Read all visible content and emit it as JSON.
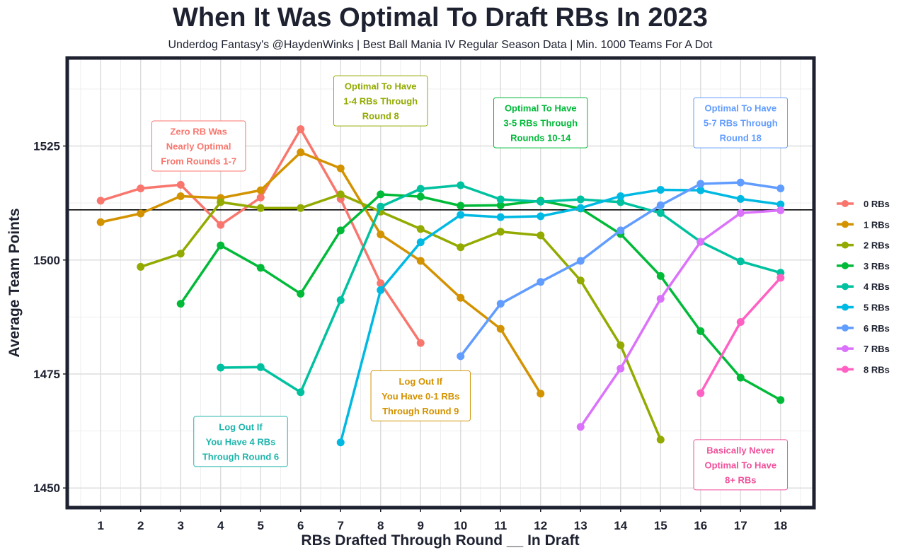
{
  "chart_data": {
    "type": "line",
    "title": "When It Was Optimal To Draft RBs In 2023",
    "subtitle": "Underdog Fantasy's @HaydenWinks | Best Ball Mania IV Regular Season Data | Min. 1000 Teams For A Dot",
    "xlabel": "RBs Drafted Through Round __ In Draft",
    "ylabel": "Average Team Points",
    "xlim": [
      0.2,
      18.8
    ],
    "ylim": [
      1446,
      1544
    ],
    "x_ticks": [
      1,
      2,
      3,
      4,
      5,
      6,
      7,
      8,
      9,
      10,
      11,
      12,
      13,
      14,
      15,
      16,
      17,
      18
    ],
    "x_tick_labels": [
      "1",
      "2",
      "3",
      "4",
      "5",
      "6",
      "7",
      "8",
      "9",
      "10",
      "11",
      "12",
      "13",
      "14",
      "15",
      "16",
      "17",
      "18"
    ],
    "y_ticks": [
      1450,
      1475,
      1500,
      1525
    ],
    "y_tick_labels": [
      "1450",
      "1475",
      "1500",
      "1525"
    ],
    "grid": true,
    "legend_position": "right",
    "reference_line": 1511.0,
    "series": [
      {
        "name": "0 RBs",
        "color": "#F8766D",
        "x": [
          1,
          2,
          3,
          4,
          5,
          6,
          7,
          8,
          9
        ],
        "values": [
          1513.0,
          1515.7,
          1516.5,
          1507.7,
          1513.7,
          1528.7,
          1513.4,
          1494.9,
          1481.8
        ]
      },
      {
        "name": "1 RBs",
        "color": "#D39200",
        "x": [
          1,
          2,
          3,
          4,
          5,
          6,
          7,
          8,
          9,
          10,
          11,
          12
        ],
        "values": [
          1508.3,
          1510.2,
          1514.0,
          1513.6,
          1515.3,
          1523.6,
          1520.1,
          1505.6,
          1499.8,
          1491.7,
          1484.9,
          1470.7
        ]
      },
      {
        "name": "2 RBs",
        "color": "#93AA00",
        "x": [
          2,
          3,
          4,
          5,
          6,
          7,
          8,
          9,
          10,
          11,
          12,
          13,
          14,
          15
        ],
        "values": [
          1498.5,
          1501.4,
          1512.7,
          1511.4,
          1511.4,
          1514.4,
          1510.6,
          1506.8,
          1502.8,
          1506.2,
          1505.4,
          1495.5,
          1481.3,
          1460.6
        ]
      },
      {
        "name": "3 RBs",
        "color": "#00BA38",
        "x": [
          3,
          4,
          5,
          6,
          7,
          8,
          9,
          10,
          11,
          12,
          13,
          14,
          15,
          16,
          17,
          18
        ],
        "values": [
          1490.4,
          1503.2,
          1498.3,
          1492.6,
          1506.5,
          1514.4,
          1513.9,
          1511.9,
          1512.0,
          1513.0,
          1511.3,
          1505.7,
          1496.5,
          1484.4,
          1474.2,
          1469.3
        ]
      },
      {
        "name": "4 RBs",
        "color": "#00C19F",
        "x": [
          4,
          5,
          6,
          7,
          8,
          9,
          10,
          11,
          12,
          13,
          14,
          15,
          16,
          17,
          18
        ],
        "values": [
          1476.4,
          1476.5,
          1471.0,
          1491.2,
          1511.7,
          1515.6,
          1516.4,
          1513.3,
          1512.8,
          1513.3,
          1512.7,
          1510.3,
          1504.0,
          1499.7,
          1497.2
        ]
      },
      {
        "name": "5 RBs",
        "color": "#00B9E3",
        "x": [
          7,
          8,
          9,
          10,
          11,
          12,
          13,
          14,
          15,
          16,
          17,
          18
        ],
        "values": [
          1460.0,
          1493.4,
          1503.9,
          1509.9,
          1509.4,
          1509.6,
          1511.4,
          1514.0,
          1515.4,
          1515.3,
          1513.4,
          1512.2
        ]
      },
      {
        "name": "6 RBs",
        "color": "#619CFF",
        "x": [
          10,
          11,
          12,
          13,
          14,
          15,
          16,
          17,
          18
        ],
        "values": [
          1478.9,
          1490.4,
          1495.2,
          1499.8,
          1506.5,
          1512.0,
          1516.7,
          1517.0,
          1515.7
        ]
      },
      {
        "name": "7 RBs",
        "color": "#DB72FB",
        "x": [
          13,
          14,
          15,
          16,
          17,
          18
        ],
        "values": [
          1463.4,
          1476.2,
          1491.5,
          1504.0,
          1510.3,
          1510.9
        ]
      },
      {
        "name": "8 RBs",
        "color": "#FF61C3",
        "x": [
          16,
          17,
          18
        ],
        "values": [
          1470.8,
          1486.4,
          1496.1
        ]
      }
    ],
    "annotations": [
      {
        "lines": [
          "Zero RB Was",
          "Nearly Optimal",
          "From Rounds 1-7"
        ],
        "x": 3.45,
        "y": 1525,
        "color": "#F8766D"
      },
      {
        "lines": [
          "Optimal To Have",
          "1-4 RBs Through",
          "Round 8"
        ],
        "x": 8.0,
        "y": 1534.9,
        "color": "#93AA00"
      },
      {
        "lines": [
          "Optimal To Have",
          "3-5 RBs Through",
          "Rounds 10-14"
        ],
        "x": 12.0,
        "y": 1530.1,
        "color": "#00BA38"
      },
      {
        "lines": [
          "Optimal To Have",
          "5-7 RBs Through",
          "Round 18"
        ],
        "x": 17.0,
        "y": 1530.1,
        "color": "#619CFF"
      },
      {
        "lines": [
          "Log Out If",
          "You Have 0-1 RBs",
          "Through Round 9"
        ],
        "x": 9.0,
        "y": 1470.2,
        "color": "#D39200"
      },
      {
        "lines": [
          "Log Out If",
          "You Have 4 RBs",
          "Through Round 6"
        ],
        "x": 4.5,
        "y": 1460.2,
        "color": "#1FB5AC"
      },
      {
        "lines": [
          "Basically Never",
          "Optimal To Have",
          "8+ RBs"
        ],
        "x": 17.0,
        "y": 1455.1,
        "color": "#F0509A"
      }
    ]
  }
}
